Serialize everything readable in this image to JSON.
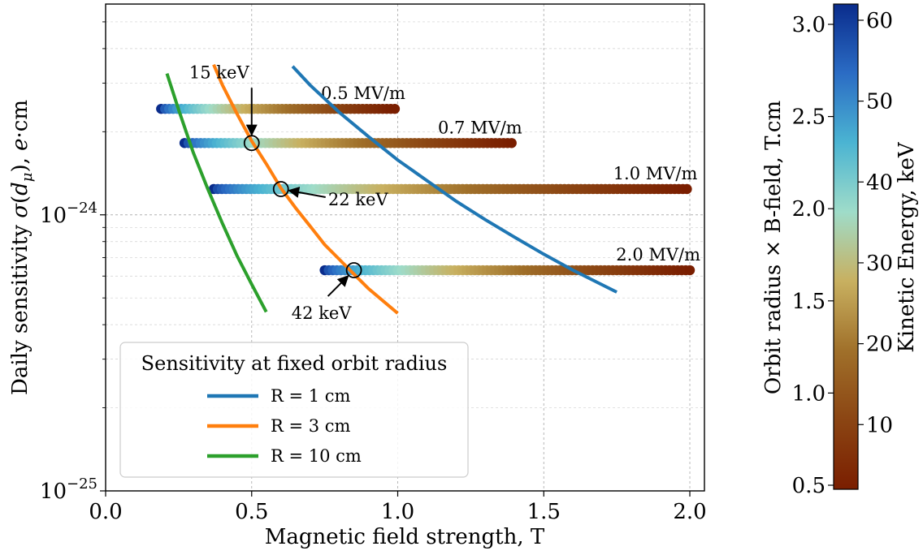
{
  "chart_data": {
    "type": "scatter",
    "xlabel": "Magnetic field strength, T",
    "ylabel": "Daily sensitivity σ(d_μ), e·cm",
    "ylabel_parts": {
      "main": "Daily sensitivity ",
      "sigma": "σ(d",
      "sub": "μ",
      "close": "), ",
      "unit_e": "e",
      "unit_rest": "·cm"
    },
    "x_range": [
      0.0,
      2.05
    ],
    "y_range": [
      1e-25,
      5.8e-24
    ],
    "y_scale": "log",
    "grid": true,
    "x_ticks": [
      {
        "v": 0.0,
        "label": "0.0"
      },
      {
        "v": 0.5,
        "label": "0.5"
      },
      {
        "v": 1.0,
        "label": "1.0"
      },
      {
        "v": 1.5,
        "label": "1.5"
      },
      {
        "v": 2.0,
        "label": "2.0"
      }
    ],
    "y_ticks": [
      {
        "v": 1e-25,
        "base": "10",
        "exp": "−25"
      },
      {
        "v": 1e-24,
        "base": "10",
        "exp": "−24"
      }
    ],
    "legend": {
      "title": "Sensitivity at fixed orbit radius",
      "placement": "lower-left",
      "entries": [
        {
          "label": "R = 1 cm",
          "color": "#1f77b4"
        },
        {
          "label": "R = 3 cm",
          "color": "#ff7f0e"
        },
        {
          "label": "R = 10 cm",
          "color": "#2ca02c"
        }
      ]
    },
    "curves": [
      {
        "name": "R = 1 cm",
        "color": "#1f77b4",
        "x": [
          0.64,
          0.7,
          0.8,
          0.9,
          1.0,
          1.1,
          1.2,
          1.3,
          1.4,
          1.5,
          1.6,
          1.75
        ],
        "y": [
          3.45e-24,
          2.95e-24,
          2.35e-24,
          1.92e-24,
          1.58e-24,
          1.33e-24,
          1.12e-24,
          9.6e-25,
          8.3e-25,
          7.2e-25,
          6.3e-25,
          5.25e-25
        ]
      },
      {
        "name": "R = 3 cm",
        "color": "#ff7f0e",
        "x": [
          0.37,
          0.4,
          0.45,
          0.5,
          0.55,
          0.6,
          0.65,
          0.7,
          0.75,
          0.8,
          0.85,
          0.9,
          1.0
        ],
        "y": [
          3.5e-24,
          2.95e-24,
          2.32e-24,
          1.85e-24,
          1.53e-24,
          1.25e-24,
          1.06e-24,
          9.1e-25,
          7.8e-25,
          6.9e-25,
          6.1e-25,
          5.4e-25,
          4.4e-25
        ]
      },
      {
        "name": "R = 10 cm",
        "color": "#2ca02c",
        "x": [
          0.21,
          0.25,
          0.3,
          0.35,
          0.4,
          0.45,
          0.5,
          0.55
        ],
        "y": [
          3.25e-24,
          2.4e-24,
          1.68e-24,
          1.24e-24,
          9.3e-25,
          7.1e-25,
          5.6e-25,
          4.45e-25
        ]
      }
    ],
    "field_series": [
      {
        "label": "0.5 MV/m",
        "y": 2.42e-24,
        "x_start": 0.19,
        "x_end": 0.99
      },
      {
        "label": "0.7 MV/m",
        "y": 1.82e-24,
        "x_start": 0.27,
        "x_end": 1.39
      },
      {
        "label": "1.0 MV/m",
        "y": 1.24e-24,
        "x_start": 0.37,
        "x_end": 1.99
      },
      {
        "label": "2.0 MV/m",
        "y": 6.3e-25,
        "x_start": 0.75,
        "x_end": 2.0
      }
    ],
    "markers": [
      {
        "label": "15 keV",
        "x": 0.5,
        "y": 1.82e-24
      },
      {
        "label": "22 keV",
        "x": 0.6,
        "y": 1.24e-24
      },
      {
        "label": "42 keV",
        "x": 0.85,
        "y": 6.3e-25
      }
    ],
    "colorbar": {
      "label_right": "Kinetic Energy, keV",
      "label_left": "Orbit radius × B-field, T.cm",
      "right_ticks": [
        "10",
        "20",
        "30",
        "40",
        "50",
        "60"
      ],
      "left_ticks": [
        "0.5",
        "1.0",
        "1.5",
        "2.0",
        "2.5",
        "3.0"
      ],
      "energy_range": [
        2,
        62
      ],
      "colormap": [
        "#7a1e00",
        "#8b4513",
        "#a0702a",
        "#c8b060",
        "#9fdcc9",
        "#4bb4d2",
        "#2b6cc4",
        "#0a2c8c"
      ]
    }
  }
}
